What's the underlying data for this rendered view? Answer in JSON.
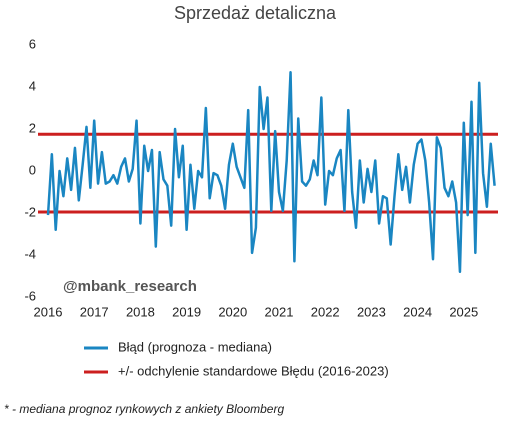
{
  "chart_data": {
    "type": "line",
    "title": "Sprzedaż detaliczna",
    "categories": [
      "2016",
      null,
      null,
      null,
      null,
      null,
      null,
      null,
      null,
      null,
      null,
      null,
      "2017",
      null,
      null,
      null,
      null,
      null,
      null,
      null,
      null,
      null,
      null,
      null,
      "2018",
      null,
      null,
      null,
      null,
      null,
      null,
      null,
      null,
      null,
      null,
      null,
      "2019",
      null,
      null,
      null,
      null,
      null,
      null,
      null,
      null,
      null,
      null,
      null,
      "2020",
      null,
      null,
      null,
      null,
      null,
      null,
      null,
      null,
      null,
      null,
      null,
      "2021",
      null,
      null,
      null,
      null,
      null,
      null,
      null,
      null,
      null,
      null,
      null,
      "2022",
      null,
      null,
      null,
      null,
      null,
      null,
      null,
      null,
      null,
      null,
      null,
      "2023",
      null,
      null,
      null,
      null,
      null,
      null,
      null,
      null,
      null,
      null,
      null,
      "2024",
      null,
      null,
      null,
      null,
      null,
      null,
      null,
      null,
      null,
      null,
      null,
      "2025",
      null,
      null,
      null,
      null,
      null,
      null,
      null,
      null
    ],
    "series": [
      {
        "name": "Błąd (prognoza - mediana)",
        "color": "#1a86c2",
        "values": [
          -2.1,
          0.8,
          -2.8,
          0,
          -1.2,
          0.6,
          -0.9,
          1.1,
          -1.4,
          0.3,
          2.1,
          -0.8,
          2.4,
          -0.6,
          0.9,
          -0.6,
          -0.5,
          -0.2,
          -0.6,
          0.2,
          0.6,
          -0.5,
          0.1,
          2.4,
          -2.5,
          1.2,
          0,
          1.0,
          -3.6,
          0.9,
          -0.4,
          -0.7,
          -2.6,
          2.0,
          -0.3,
          1.2,
          -2.8,
          0.3,
          -1.8,
          0,
          -0.3,
          3.0,
          -1.3,
          -0.1,
          -0.2,
          -0.7,
          -1.8,
          0.3,
          1.3,
          0.2,
          -0.3,
          -0.8,
          2.9,
          -3.9,
          -2.7,
          4.0,
          2.0,
          3.5,
          -1.9,
          1.9,
          -1.0,
          -1.9,
          0.5,
          4.7,
          -4.3,
          2.5,
          -0.5,
          -0.7,
          -0.4,
          0.5,
          -0.2,
          3.5,
          -1.6,
          0,
          -0.2,
          0.6,
          1.0,
          -1.9,
          2.9,
          -1.0,
          -2.7,
          0.5,
          -1.5,
          0.1,
          -1.0,
          0.5,
          -2.5,
          -1.2,
          -1.3,
          -3.5,
          -1.2,
          0.8,
          -0.9,
          0.2,
          -1.5,
          0.3,
          1.3,
          1.5,
          0.5,
          -1.5,
          -4.2,
          1.6,
          1.1,
          -0.8,
          -1.2,
          -0.5,
          -1.5,
          -4.8,
          2.3,
          -2.1,
          3.3,
          -3.9,
          4.2,
          -0.1,
          -1.7,
          1.3,
          -0.7
        ]
      }
    ],
    "reference_lines": {
      "name": "+/- odchylenie standardowe Błędu (2016-2023)",
      "color": "#cc1f1f",
      "values": [
        1.75,
        -1.95
      ]
    },
    "ylim": [
      -6,
      6
    ],
    "yticks": [
      -6,
      -4,
      -2,
      0,
      2,
      4,
      6
    ],
    "grid": false,
    "annotation": "@mbank_research",
    "footnote": "* - mediana prognoz rynkowych z ankiety Bloomberg"
  }
}
